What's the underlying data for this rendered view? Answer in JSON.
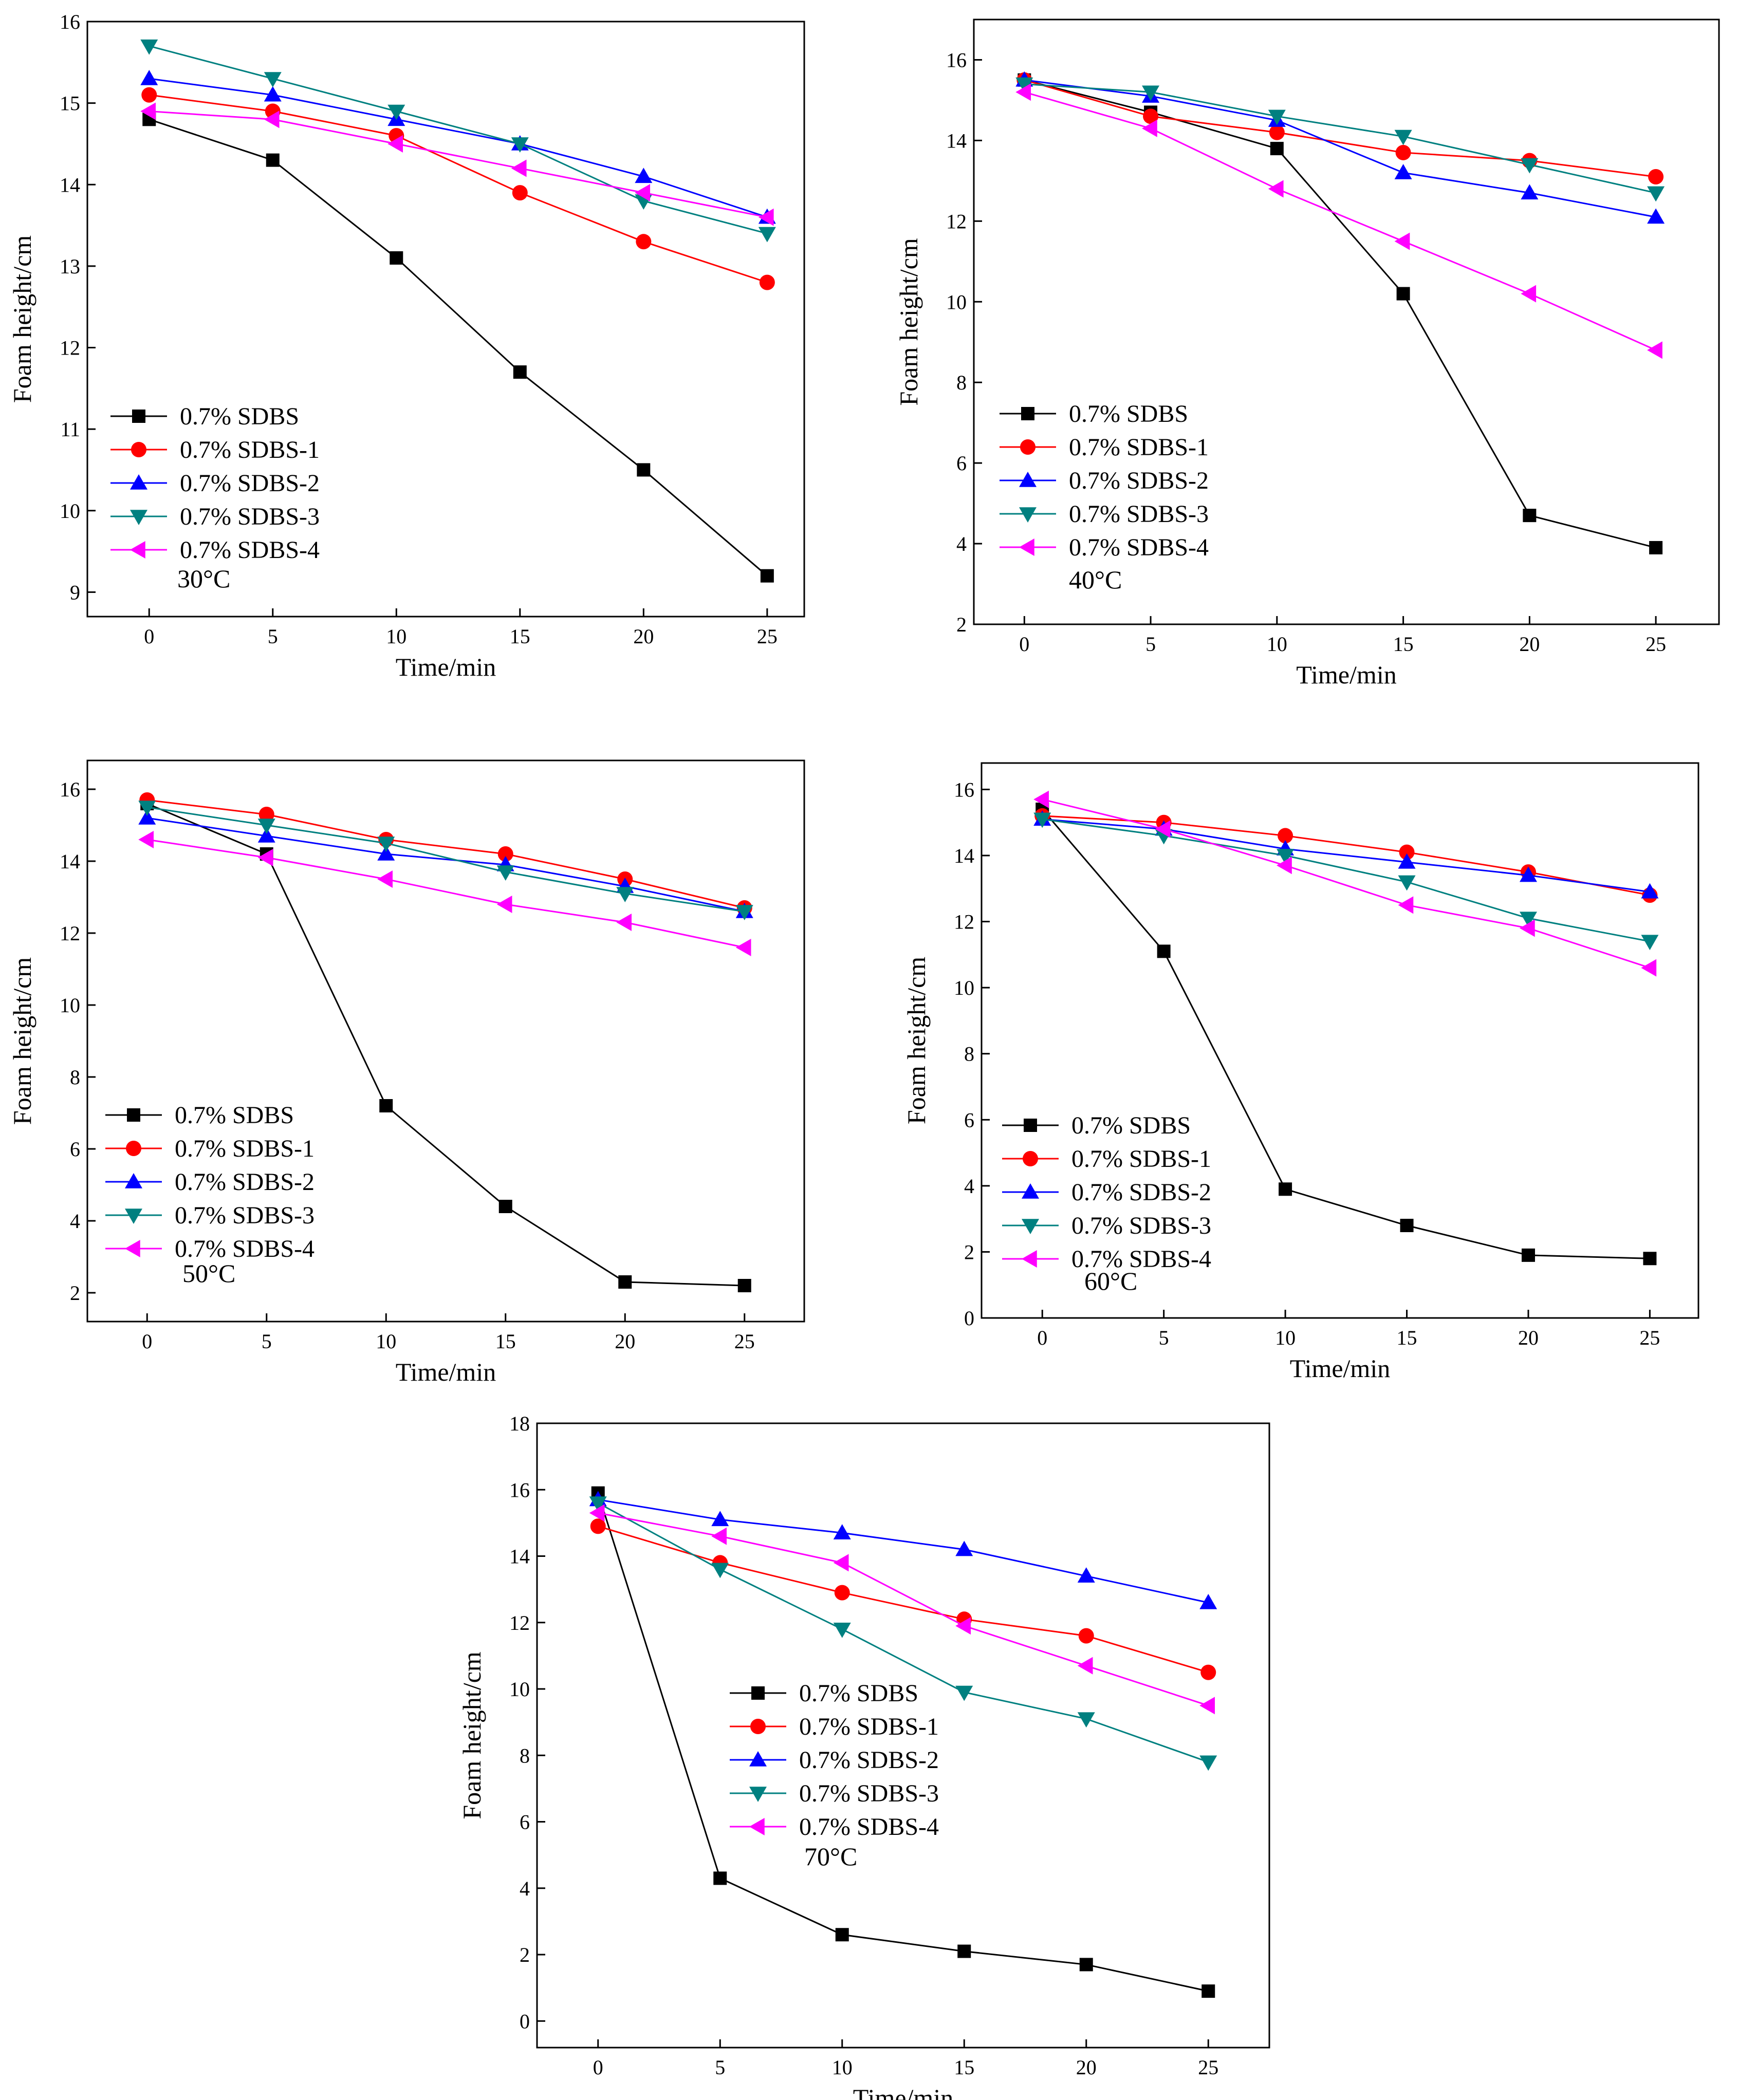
{
  "figure": {
    "series_colors": [
      "#000000",
      "#ff0000",
      "#0000ff",
      "#008080",
      "#ff00ff"
    ],
    "series_markers": [
      "square",
      "circle",
      "triangle-up",
      "triangle-down",
      "triangle-left"
    ]
  },
  "chart_data": [
    {
      "type": "line",
      "annotation": "30°C",
      "xlabel": "Time/min",
      "ylabel": "Foam height/cm",
      "x": [
        0,
        5,
        10,
        15,
        20,
        25
      ],
      "xlim": [
        -2.5,
        26.5
      ],
      "ylim": [
        8.7,
        16
      ],
      "xticks": [
        0,
        5,
        10,
        15,
        20,
        25
      ],
      "yticks": [
        9,
        10,
        11,
        12,
        13,
        14,
        15,
        16
      ],
      "legend_position": "center-left",
      "series": [
        {
          "name": "0.7% SDBS",
          "values": [
            14.8,
            14.3,
            13.1,
            11.7,
            10.5,
            9.2
          ]
        },
        {
          "name": "0.7% SDBS-1",
          "values": [
            15.1,
            14.9,
            14.6,
            13.9,
            13.3,
            12.8
          ]
        },
        {
          "name": "0.7% SDBS-2",
          "values": [
            15.3,
            15.1,
            14.8,
            14.5,
            14.1,
            13.6
          ]
        },
        {
          "name": "0.7% SDBS-3",
          "values": [
            15.7,
            15.3,
            14.9,
            14.5,
            13.8,
            13.4
          ]
        },
        {
          "name": "0.7% SDBS-4",
          "values": [
            14.9,
            14.8,
            14.5,
            14.2,
            13.9,
            13.6
          ]
        }
      ]
    },
    {
      "type": "line",
      "annotation": "40°C",
      "xlabel": "Time/min",
      "ylabel": "Foam height/cm",
      "x": [
        0,
        5,
        10,
        15,
        20,
        25
      ],
      "xlim": [
        -2,
        27.5
      ],
      "ylim": [
        2,
        17
      ],
      "xticks": [
        0,
        5,
        10,
        15,
        20,
        25
      ],
      "yticks": [
        2,
        4,
        6,
        8,
        10,
        12,
        14,
        16
      ],
      "legend_position": "lower-left",
      "series": [
        {
          "name": "0.7% SDBS",
          "values": [
            15.5,
            14.7,
            13.8,
            10.2,
            4.7,
            3.9
          ]
        },
        {
          "name": "0.7% SDBS-1",
          "values": [
            15.5,
            14.6,
            14.2,
            13.7,
            13.5,
            13.1
          ]
        },
        {
          "name": "0.7% SDBS-2",
          "values": [
            15.5,
            15.1,
            14.5,
            13.2,
            12.7,
            12.1
          ]
        },
        {
          "name": "0.7% SDBS-3",
          "values": [
            15.4,
            15.2,
            14.6,
            14.1,
            13.4,
            12.7
          ]
        },
        {
          "name": "0.7% SDBS-4",
          "values": [
            15.2,
            14.3,
            12.8,
            11.5,
            10.2,
            8.8
          ]
        }
      ]
    },
    {
      "type": "line",
      "annotation": "50°C",
      "xlabel": "Time/min",
      "ylabel": "Foam height/cm",
      "x": [
        0,
        5,
        10,
        15,
        20,
        25
      ],
      "xlim": [
        -2.5,
        27.5
      ],
      "ylim": [
        1.2,
        16.8
      ],
      "xticks": [
        0,
        5,
        10,
        15,
        20,
        25
      ],
      "yticks": [
        2,
        4,
        6,
        8,
        10,
        12,
        14,
        16
      ],
      "legend_position": "lower-left",
      "series": [
        {
          "name": "0.7% SDBS",
          "values": [
            15.6,
            14.2,
            7.2,
            4.4,
            2.3,
            2.2
          ]
        },
        {
          "name": "0.7% SDBS-1",
          "values": [
            15.7,
            15.3,
            14.6,
            14.2,
            13.5,
            12.7
          ]
        },
        {
          "name": "0.7% SDBS-2",
          "values": [
            15.2,
            14.7,
            14.2,
            13.9,
            13.3,
            12.6
          ]
        },
        {
          "name": "0.7% SDBS-3",
          "values": [
            15.5,
            15.0,
            14.5,
            13.7,
            13.1,
            12.6
          ]
        },
        {
          "name": "0.7% SDBS-4",
          "values": [
            14.6,
            14.1,
            13.5,
            12.8,
            12.3,
            11.6
          ]
        }
      ]
    },
    {
      "type": "line",
      "annotation": "60°C",
      "xlabel": "Time/min",
      "ylabel": "Foam height/cm",
      "x": [
        0,
        5,
        10,
        15,
        20,
        25
      ],
      "xlim": [
        -2.5,
        27
      ],
      "ylim": [
        0,
        16.8
      ],
      "xticks": [
        0,
        5,
        10,
        15,
        20,
        25
      ],
      "yticks": [
        0,
        2,
        4,
        6,
        8,
        10,
        12,
        14,
        16
      ],
      "legend_position": "lower-left",
      "series": [
        {
          "name": "0.7% SDBS",
          "values": [
            15.4,
            11.1,
            3.9,
            2.8,
            1.9,
            1.8
          ]
        },
        {
          "name": "0.7% SDBS-1",
          "values": [
            15.2,
            15.0,
            14.6,
            14.1,
            13.5,
            12.8
          ]
        },
        {
          "name": "0.7% SDBS-2",
          "values": [
            15.1,
            14.8,
            14.2,
            13.8,
            13.4,
            12.9
          ]
        },
        {
          "name": "0.7% SDBS-3",
          "values": [
            15.1,
            14.6,
            14.0,
            13.2,
            12.1,
            11.4
          ]
        },
        {
          "name": "0.7% SDBS-4",
          "values": [
            15.7,
            14.8,
            13.7,
            12.5,
            11.8,
            10.6
          ]
        }
      ]
    },
    {
      "type": "line",
      "annotation": "70°C",
      "xlabel": "Time/min",
      "ylabel": "Foam height/cm",
      "x": [
        0,
        5,
        10,
        15,
        20,
        25
      ],
      "xlim": [
        -2.5,
        27.5
      ],
      "ylim": [
        -0.8,
        18
      ],
      "xticks": [
        0,
        5,
        10,
        15,
        20,
        25
      ],
      "yticks": [
        0,
        2,
        4,
        6,
        8,
        10,
        12,
        14,
        16,
        18
      ],
      "legend_position": "center",
      "series": [
        {
          "name": "0.7% SDBS",
          "values": [
            15.9,
            4.3,
            2.6,
            2.1,
            1.7,
            0.9
          ]
        },
        {
          "name": "0.7% SDBS-1",
          "values": [
            14.9,
            13.8,
            12.9,
            12.1,
            11.6,
            10.5
          ]
        },
        {
          "name": "0.7% SDBS-2",
          "values": [
            15.7,
            15.1,
            14.7,
            14.2,
            13.4,
            12.6
          ]
        },
        {
          "name": "0.7% SDBS-3",
          "values": [
            15.6,
            13.6,
            11.8,
            9.9,
            9.1,
            7.8
          ]
        },
        {
          "name": "0.7% SDBS-4",
          "values": [
            15.3,
            14.6,
            13.8,
            11.9,
            10.7,
            9.5
          ]
        }
      ]
    }
  ]
}
